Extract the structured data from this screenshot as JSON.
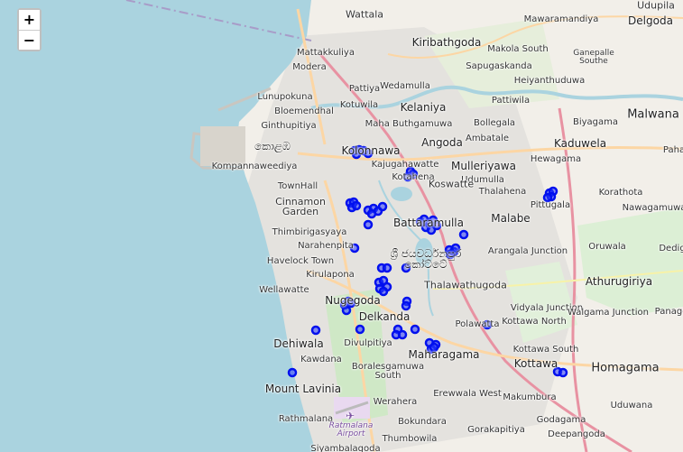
{
  "zoom_control": {
    "zoom_in_label": "+",
    "zoom_out_label": "−"
  },
  "colors": {
    "sea": "#aad3df",
    "land": "#f2efe9",
    "urban": "#e0dfdf",
    "park": "#c8facc",
    "marker_stroke": "#0010ee",
    "marker_fill": "#2b3cff",
    "motorway": "#e892a2",
    "primary": "#fcd6a4"
  },
  "labels": {
    "wattala": "Wattala",
    "mawaramandiya": "Mawaramandiya",
    "udupila": "Udupila",
    "delgoda": "Delgoda",
    "mattakkuliya": "Mattakkuliya",
    "kiribathgoda": "Kiribathgoda",
    "makola_south": "Makola South",
    "modera": "Modera",
    "sapugaskanda": "Sapugaskanda",
    "ganemulla_south": "Ganepalle\nSouthe",
    "pattiya": "Pattiya",
    "wedamulla": "Wedamulla",
    "heiyanthuduwa": "Heiyanthuduwa",
    "lunupokuna": "Lunupokuna",
    "kelaniya": "Kelaniya",
    "bloemendhal": "Bloemendhal",
    "kotuwila": "Kotuwila",
    "pattiwila": "Pattiwila",
    "malwana": "Malwana",
    "ginthupitiya": "Ginthupitiya",
    "maha_buthgamuwa": "Maha Buthgamuwa",
    "bollegala": "Bollegala",
    "biyagama": "Biyagama",
    "colombo_si": "කොළඹ",
    "kolonnawa": "Kolonnawa",
    "angoda": "Angoda",
    "ambatale": "Ambatale",
    "kaduwela": "Kaduwela",
    "kompannaweediya": "Kompannaweediya",
    "kajugahawatte": "Kajugahawatte",
    "mulleriyawa": "Mulleriyawa",
    "hewagama": "Hewagama",
    "pahala": "Paha",
    "kotahena_small": "Kotahena",
    "udumulla": "Udumulla",
    "townhall": "TownHall",
    "koswatte": "Koswatte",
    "thalahena": "Thalahena",
    "korathota": "Korathota",
    "cinnamon_garden": "Cinnamon\nGarden",
    "malabe": "Malabe",
    "pittugala": "Pittugala",
    "nawagamuwa": "Nawagamuwa",
    "battaramulla": "Battaramulla",
    "thimbirigasyaya": "Thimbirigasyaya",
    "narahenpita": "Narahenpita",
    "sri_jaya_si": "ශ්‍රී ජයවර්ධනපුර\nකෝට්ටේ",
    "arangala_junction": "Arangala Junction",
    "oruwala": "Oruwala",
    "dedigamuwa": "Dedig",
    "havelock_town": "Havelock Town",
    "kirulapona": "Kirulapona",
    "athurugiriya": "Athurugiriya",
    "wellawatte": "Wellawatte",
    "thalawathugoda": "Thalawathugoda",
    "nugegoda": "Nugegoda",
    "vidyala_junction": "Vidyala Junction",
    "walgama_junction": "Walgama Junction",
    "panagoda": "Panago",
    "delkanda": "Delkanda",
    "kottawa_north": "Kottawa North",
    "polwatta": "Polawatta",
    "dehiwala": "Dehiwala",
    "divulpitiya": "Divulpitiya",
    "maharagama": "Maharagama",
    "kottawa_south": "Kottawa South",
    "kawdana": "Kawdana",
    "boralesgamuwa": "Boralesgamuwa\nSouth",
    "kottawa": "Kottawa",
    "homagama": "Homagama",
    "erewwala_west": "Erewwala West",
    "mount_lavinia": "Mount Lavinia",
    "werahera": "Werahera",
    "makumbura": "Makumbura",
    "uduwana": "Uduwana",
    "rathmalana": "Rathmalana",
    "ratmalana_airport": "Ratmalana\nAirport",
    "bokundara": "Bokundara",
    "godagama": "Godagama",
    "gorakapitiya": "Gorakapitiya",
    "thumbowila": "Thumbowila",
    "deepangoda": "Deepangoda",
    "siyambalagoda": "Siyambalagoda"
  },
  "marker_count": 64
}
